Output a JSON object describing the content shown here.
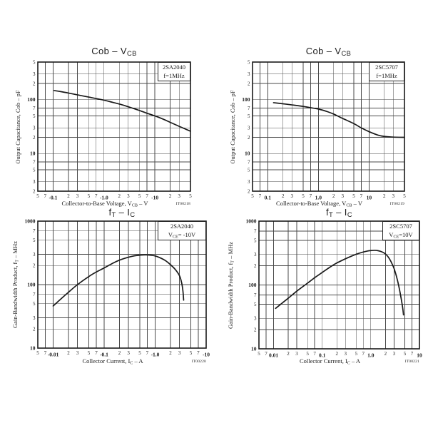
{
  "page": {
    "background": "#ffffff"
  },
  "colors": {
    "curve": "#1a1a1a",
    "grid": "#4a4a4a",
    "border": "#1a1a1a",
    "text": "#1a1a1a"
  },
  "chart_data": [
    {
      "type": "line",
      "title": "Cob – V~CB~",
      "device": "2SA2040",
      "condition": "f=1MHz",
      "xlabel": "Collector-to-Base Voltage, V~CB~ – V",
      "ylabel": "Output Capacitance, Cob – pF",
      "code": "IT00218",
      "xlim": [
        0.05,
        50
      ],
      "ylim": [
        2,
        500
      ],
      "x_ticks": [
        {
          "v": 0.05,
          "l": "5"
        },
        {
          "v": 0.07,
          "l": "7"
        },
        {
          "v": 0.1,
          "l": "-0.1",
          "d": true
        },
        {
          "v": 0.2,
          "l": "2"
        },
        {
          "v": 0.3,
          "l": "3"
        },
        {
          "v": 0.5,
          "l": "5"
        },
        {
          "v": 0.7,
          "l": "7"
        },
        {
          "v": 1,
          "l": "-1.0",
          "d": true
        },
        {
          "v": 2,
          "l": "2"
        },
        {
          "v": 3,
          "l": "3"
        },
        {
          "v": 5,
          "l": "5"
        },
        {
          "v": 7,
          "l": "7"
        },
        {
          "v": 10,
          "l": "-10",
          "d": true
        },
        {
          "v": 20,
          "l": "2"
        },
        {
          "v": 30,
          "l": "3"
        },
        {
          "v": 50,
          "l": "5"
        }
      ],
      "y_ticks": [
        {
          "v": 2,
          "l": "2"
        },
        {
          "v": 3,
          "l": "3"
        },
        {
          "v": 5,
          "l": "5"
        },
        {
          "v": 7,
          "l": "7"
        },
        {
          "v": 10,
          "l": "10",
          "d": true
        },
        {
          "v": 20,
          "l": "2"
        },
        {
          "v": 30,
          "l": "3"
        },
        {
          "v": 50,
          "l": "5"
        },
        {
          "v": 70,
          "l": "7"
        },
        {
          "v": 100,
          "l": "100",
          "d": true
        },
        {
          "v": 200,
          "l": "2"
        },
        {
          "v": 300,
          "l": "3"
        },
        {
          "v": 500,
          "l": "5"
        }
      ],
      "points": [
        [
          0.105,
          148
        ],
        [
          0.15,
          140
        ],
        [
          0.2,
          133
        ],
        [
          0.3,
          123
        ],
        [
          0.5,
          112
        ],
        [
          0.7,
          105
        ],
        [
          1,
          98
        ],
        [
          1.5,
          89
        ],
        [
          2,
          83
        ],
        [
          3,
          74
        ],
        [
          5,
          63
        ],
        [
          7,
          56
        ],
        [
          10,
          50
        ],
        [
          15,
          43
        ],
        [
          20,
          38
        ],
        [
          30,
          32
        ],
        [
          50,
          26
        ]
      ]
    },
    {
      "type": "line",
      "title": "Cob – V~CB~",
      "device": "2SC5707",
      "condition": "f=1MHz",
      "xlabel": "Collector-to-Base Voltage, V~CB~ – V",
      "ylabel": "Output Capacitance, Cob – pF",
      "code": "IT00219",
      "xlim": [
        0.05,
        50
      ],
      "ylim": [
        2,
        500
      ],
      "x_ticks": [
        {
          "v": 0.05,
          "l": "5"
        },
        {
          "v": 0.07,
          "l": "7"
        },
        {
          "v": 0.1,
          "l": "0.1",
          "d": true
        },
        {
          "v": 0.2,
          "l": "2"
        },
        {
          "v": 0.3,
          "l": "3"
        },
        {
          "v": 0.5,
          "l": "5"
        },
        {
          "v": 0.7,
          "l": "7"
        },
        {
          "v": 1,
          "l": "1.0",
          "d": true
        },
        {
          "v": 2,
          "l": "2"
        },
        {
          "v": 3,
          "l": "3"
        },
        {
          "v": 5,
          "l": "5"
        },
        {
          "v": 7,
          "l": "7"
        },
        {
          "v": 10,
          "l": "10",
          "d": true
        },
        {
          "v": 20,
          "l": "2"
        },
        {
          "v": 30,
          "l": "3"
        },
        {
          "v": 50,
          "l": "5"
        }
      ],
      "y_ticks": [
        {
          "v": 2,
          "l": "2"
        },
        {
          "v": 3,
          "l": "3"
        },
        {
          "v": 5,
          "l": "5"
        },
        {
          "v": 7,
          "l": "7"
        },
        {
          "v": 10,
          "l": "10",
          "d": true
        },
        {
          "v": 20,
          "l": "2"
        },
        {
          "v": 30,
          "l": "3"
        },
        {
          "v": 50,
          "l": "5"
        },
        {
          "v": 70,
          "l": "7"
        },
        {
          "v": 100,
          "l": "100",
          "d": true
        },
        {
          "v": 200,
          "l": "2"
        },
        {
          "v": 300,
          "l": "3"
        },
        {
          "v": 500,
          "l": "5"
        }
      ],
      "points": [
        [
          0.13,
          88
        ],
        [
          0.2,
          84
        ],
        [
          0.3,
          80
        ],
        [
          0.5,
          75
        ],
        [
          0.7,
          71
        ],
        [
          1,
          67
        ],
        [
          1.5,
          60
        ],
        [
          2,
          54
        ],
        [
          3,
          45
        ],
        [
          5,
          36
        ],
        [
          7,
          30
        ],
        [
          10,
          25.5
        ],
        [
          15,
          22
        ],
        [
          20,
          20.8
        ],
        [
          30,
          20.2
        ],
        [
          50,
          20
        ]
      ]
    },
    {
      "type": "line",
      "title": "f~T~ – I~C~",
      "device": "2SA2040",
      "condition": "V~CE~= -10V",
      "xlabel": "Collector Current, I~C~ – A",
      "ylabel": "Gain-Bandwidth Product, f~T~ – MHz",
      "code": "IT00220",
      "xlim": [
        0.005,
        10
      ],
      "ylim": [
        10,
        1000
      ],
      "x_ticks": [
        {
          "v": 0.005,
          "l": "5"
        },
        {
          "v": 0.007,
          "l": "7"
        },
        {
          "v": 0.01,
          "l": "-0.01",
          "d": true
        },
        {
          "v": 0.02,
          "l": "2"
        },
        {
          "v": 0.03,
          "l": "3"
        },
        {
          "v": 0.05,
          "l": "5"
        },
        {
          "v": 0.07,
          "l": "7"
        },
        {
          "v": 0.1,
          "l": "-0.1",
          "d": true
        },
        {
          "v": 0.2,
          "l": "2"
        },
        {
          "v": 0.3,
          "l": "3"
        },
        {
          "v": 0.5,
          "l": "5"
        },
        {
          "v": 0.7,
          "l": "7"
        },
        {
          "v": 1,
          "l": "-1.0",
          "d": true
        },
        {
          "v": 2,
          "l": "2"
        },
        {
          "v": 3,
          "l": "3"
        },
        {
          "v": 5,
          "l": "5"
        },
        {
          "v": 7,
          "l": "7"
        },
        {
          "v": 10,
          "l": "-10",
          "d": true
        }
      ],
      "y_ticks": [
        {
          "v": 10,
          "l": "10",
          "d": true
        },
        {
          "v": 20,
          "l": "2"
        },
        {
          "v": 30,
          "l": "3"
        },
        {
          "v": 50,
          "l": "5"
        },
        {
          "v": 70,
          "l": "7"
        },
        {
          "v": 100,
          "l": "100",
          "d": true
        },
        {
          "v": 200,
          "l": "2"
        },
        {
          "v": 300,
          "l": "3"
        },
        {
          "v": 500,
          "l": "5"
        },
        {
          "v": 700,
          "l": "7"
        },
        {
          "v": 1000,
          "l": "1000",
          "d": true
        }
      ],
      "points": [
        [
          0.01,
          46
        ],
        [
          0.015,
          62
        ],
        [
          0.02,
          76
        ],
        [
          0.03,
          100
        ],
        [
          0.05,
          134
        ],
        [
          0.07,
          158
        ],
        [
          0.1,
          183
        ],
        [
          0.15,
          219
        ],
        [
          0.2,
          243
        ],
        [
          0.3,
          270
        ],
        [
          0.4,
          285
        ],
        [
          0.5,
          291
        ],
        [
          0.65,
          294
        ],
        [
          0.8,
          291
        ],
        [
          1,
          283
        ],
        [
          1.3,
          261
        ],
        [
          1.6,
          238
        ],
        [
          2,
          206
        ],
        [
          2.5,
          172
        ],
        [
          3,
          138
        ],
        [
          3.3,
          108
        ],
        [
          3.5,
          80
        ],
        [
          3.62,
          57
        ]
      ]
    },
    {
      "type": "line",
      "title": "f~T~ – I~C~",
      "device": "2SC5707",
      "condition": "V~CE~=10V",
      "xlabel": "Collector Current, I~C~ – A",
      "ylabel": "Gain-Bandwidth Product, f~T~ – MHz",
      "code": "IT00221",
      "xlim": [
        0.005,
        10
      ],
      "ylim": [
        10,
        1000
      ],
      "x_ticks": [
        {
          "v": 0.005,
          "l": "5"
        },
        {
          "v": 0.007,
          "l": "7"
        },
        {
          "v": 0.01,
          "l": "0.01",
          "d": true
        },
        {
          "v": 0.02,
          "l": "2"
        },
        {
          "v": 0.03,
          "l": "3"
        },
        {
          "v": 0.05,
          "l": "5"
        },
        {
          "v": 0.07,
          "l": "7"
        },
        {
          "v": 0.1,
          "l": "0.1",
          "d": true
        },
        {
          "v": 0.2,
          "l": "2"
        },
        {
          "v": 0.3,
          "l": "3"
        },
        {
          "v": 0.5,
          "l": "5"
        },
        {
          "v": 0.7,
          "l": "7"
        },
        {
          "v": 1,
          "l": "1.0",
          "d": true
        },
        {
          "v": 2,
          "l": "2"
        },
        {
          "v": 3,
          "l": "3"
        },
        {
          "v": 5,
          "l": "5"
        },
        {
          "v": 7,
          "l": "7"
        },
        {
          "v": 10,
          "l": "10",
          "d": true
        }
      ],
      "y_ticks": [
        {
          "v": 10,
          "l": "10",
          "d": true
        },
        {
          "v": 20,
          "l": "2"
        },
        {
          "v": 30,
          "l": "3"
        },
        {
          "v": 50,
          "l": "5"
        },
        {
          "v": 70,
          "l": "7"
        },
        {
          "v": 100,
          "l": "100",
          "d": true
        },
        {
          "v": 200,
          "l": "2"
        },
        {
          "v": 300,
          "l": "3"
        },
        {
          "v": 500,
          "l": "5"
        },
        {
          "v": 700,
          "l": "7"
        },
        {
          "v": 1000,
          "l": "1000",
          "d": true
        }
      ],
      "points": [
        [
          0.011,
          43
        ],
        [
          0.015,
          52
        ],
        [
          0.02,
          62
        ],
        [
          0.03,
          80
        ],
        [
          0.05,
          107
        ],
        [
          0.07,
          130
        ],
        [
          0.1,
          157
        ],
        [
          0.15,
          194
        ],
        [
          0.2,
          221
        ],
        [
          0.3,
          257
        ],
        [
          0.4,
          283
        ],
        [
          0.5,
          303
        ],
        [
          0.7,
          328
        ],
        [
          0.85,
          340
        ],
        [
          1,
          346
        ],
        [
          1.2,
          349
        ],
        [
          1.4,
          345
        ],
        [
          1.7,
          330
        ],
        [
          2,
          306
        ],
        [
          2.3,
          272
        ],
        [
          2.6,
          232
        ],
        [
          3,
          182
        ],
        [
          3.5,
          122
        ],
        [
          4,
          76
        ],
        [
          4.5,
          45
        ],
        [
          4.7,
          34
        ]
      ]
    }
  ]
}
